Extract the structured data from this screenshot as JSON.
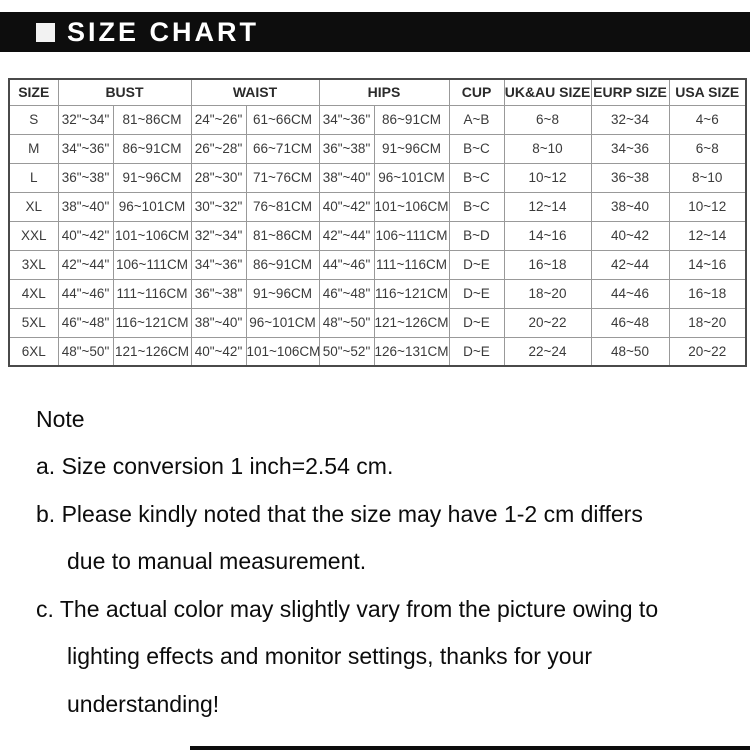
{
  "header": {
    "title": "SIZE CHART"
  },
  "table": {
    "columns": [
      {
        "label": "SIZE",
        "span": 1
      },
      {
        "label": "BUST",
        "span": 2
      },
      {
        "label": "WAIST",
        "span": 2
      },
      {
        "label": "HIPS",
        "span": 2
      },
      {
        "label": "CUP",
        "span": 1
      },
      {
        "label": "UK&AU SIZE",
        "span": 1
      },
      {
        "label": "EURP SIZE",
        "span": 1
      },
      {
        "label": "USA SIZE",
        "span": 1
      }
    ],
    "rows": [
      [
        "S",
        "32\"~34\"",
        "81~86CM",
        "24\"~26\"",
        "61~66CM",
        "34\"~36\"",
        "86~91CM",
        "A~B",
        "6~8",
        "32~34",
        "4~6"
      ],
      [
        "M",
        "34\"~36\"",
        "86~91CM",
        "26\"~28\"",
        "66~71CM",
        "36\"~38\"",
        "91~96CM",
        "B~C",
        "8~10",
        "34~36",
        "6~8"
      ],
      [
        "L",
        "36\"~38\"",
        "91~96CM",
        "28\"~30\"",
        "71~76CM",
        "38\"~40\"",
        "96~101CM",
        "B~C",
        "10~12",
        "36~38",
        "8~10"
      ],
      [
        "XL",
        "38\"~40\"",
        "96~101CM",
        "30\"~32\"",
        "76~81CM",
        "40\"~42\"",
        "101~106CM",
        "B~C",
        "12~14",
        "38~40",
        "10~12"
      ],
      [
        "XXL",
        "40\"~42\"",
        "101~106CM",
        "32\"~34\"",
        "81~86CM",
        "42\"~44\"",
        "106~111CM",
        "B~D",
        "14~16",
        "40~42",
        "12~14"
      ],
      [
        "3XL",
        "42\"~44\"",
        "106~111CM",
        "34\"~36\"",
        "86~91CM",
        "44\"~46\"",
        "111~116CM",
        "D~E",
        "16~18",
        "42~44",
        "14~16"
      ],
      [
        "4XL",
        "44\"~46\"",
        "111~116CM",
        "36\"~38\"",
        "91~96CM",
        "46\"~48\"",
        "116~121CM",
        "D~E",
        "18~20",
        "44~46",
        "16~18"
      ],
      [
        "5XL",
        "46\"~48\"",
        "116~121CM",
        "38\"~40\"",
        "96~101CM",
        "48\"~50\"",
        "121~126CM",
        "D~E",
        "20~22",
        "46~48",
        "18~20"
      ],
      [
        "6XL",
        "48\"~50\"",
        "121~126CM",
        "40\"~42\"",
        "101~106CM",
        "50\"~52\"",
        "126~131CM",
        "D~E",
        "22~24",
        "48~50",
        "20~22"
      ]
    ]
  },
  "note": {
    "title": "Note",
    "items": [
      {
        "lines": [
          "a. Size conversion 1 inch=2.54 cm."
        ]
      },
      {
        "lines": [
          "b. Please kindly noted that the size may have 1-2 cm differs",
          "due to manual measurement."
        ]
      },
      {
        "lines": [
          "c. The actual color may slightly vary from the picture owing to",
          "lighting effects and monitor settings, thanks for your",
          "understanding!"
        ]
      }
    ]
  },
  "colors": {
    "title_bar_bg": "#0d0d0d",
    "title_text": "#ffffff",
    "table_outer_border": "#4a4a4a",
    "table_inner_border": "#999999",
    "cell_text": "#3a3a3a",
    "note_text": "#0c0c0c"
  }
}
